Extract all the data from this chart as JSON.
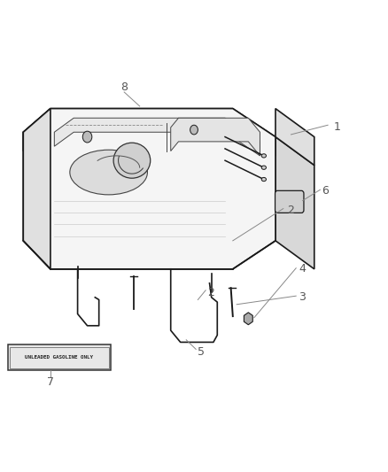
{
  "background_color": "#ffffff",
  "line_color": "#1a1a1a",
  "label_color": "#555555",
  "label_fontsize": 9,
  "tank_top_face_color": "#eeeeee",
  "tank_front_face_color": "#f5f5f5",
  "tank_right_face_color": "#d8d8d8",
  "tank_left_end_color": "#e0e0e0",
  "stamp_text": "UNLEADED GASOLINE ONLY"
}
